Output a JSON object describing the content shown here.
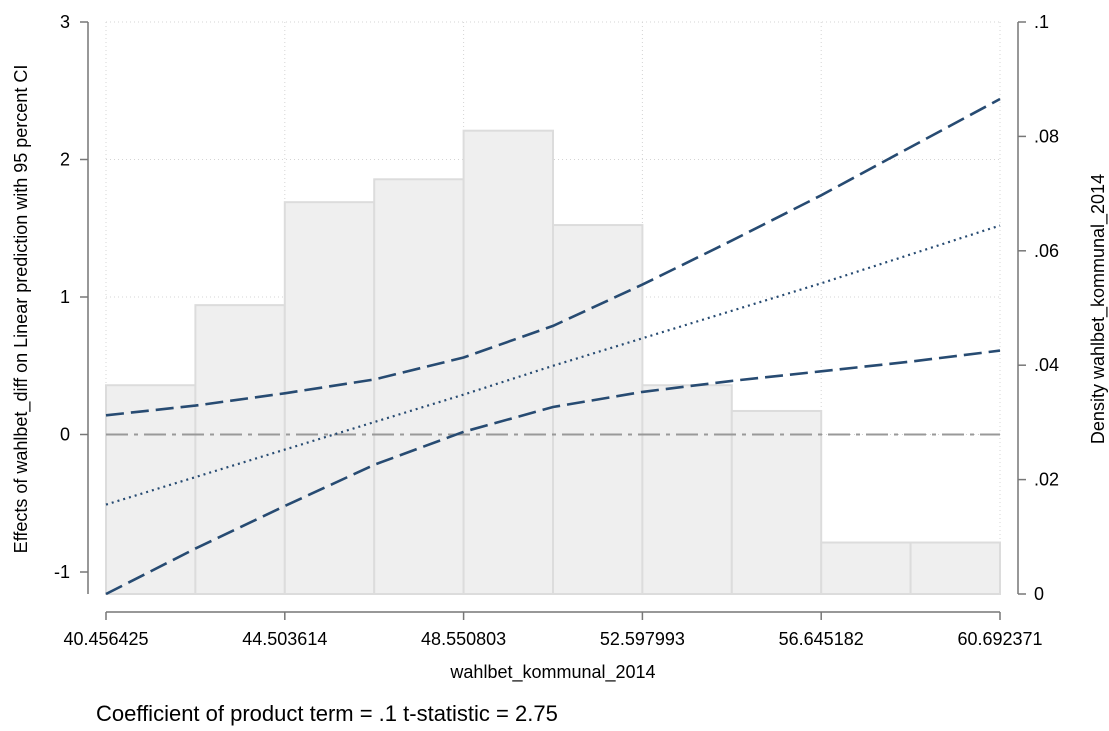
{
  "chart_data": {
    "type": "line",
    "xlabel": "wahlbet_kommunal_2014",
    "ylabel": "Effects of wahlbet_diff on Linear prediction with 95 percent CI",
    "y2label": "Density wahlbet_kommunal_2014",
    "note": "Coefficient of product term = .1 t-statistic = 2.75",
    "xlim": [
      40.456425,
      60.692371
    ],
    "ylim": [
      -1.16,
      3
    ],
    "y2lim": [
      0,
      0.1
    ],
    "grid": true,
    "x_ticks": [
      40.456425,
      44.503614,
      48.550803,
      52.597993,
      56.645182,
      60.692371
    ],
    "x_tick_labels": [
      "40.456425",
      "44.503614",
      "48.550803",
      "52.597993",
      "56.645182",
      "60.692371"
    ],
    "y_ticks": [
      -1,
      0,
      1,
      2,
      3
    ],
    "y_tick_labels": [
      "-1",
      "0",
      "1",
      "2",
      "3"
    ],
    "y2_ticks": [
      0,
      0.02,
      0.04,
      0.06,
      0.08,
      0.1
    ],
    "y2_tick_labels": [
      "0",
      ".02",
      ".04",
      ".06",
      ".08",
      ".1"
    ],
    "histogram": {
      "bin_edges": [
        40.456425,
        42.48002,
        44.503614,
        46.527209,
        48.550803,
        50.574398,
        52.597993,
        54.621587,
        56.645182,
        58.668776,
        60.692371
      ],
      "density": [
        0.0365,
        0.0505,
        0.0685,
        0.0725,
        0.081,
        0.0645,
        0.0365,
        0.032,
        0.009,
        0.009
      ]
    },
    "series": [
      {
        "role": "estimate",
        "x": [
          40.456425,
          42.48002,
          44.503614,
          46.527209,
          48.550803,
          50.574398,
          52.597993,
          54.621587,
          56.645182,
          58.668776,
          60.692371
        ],
        "values": [
          -0.51,
          -0.31,
          -0.11,
          0.09,
          0.29,
          0.5,
          0.7,
          0.9,
          1.1,
          1.31,
          1.52
        ]
      },
      {
        "role": "upper_ci",
        "x": [
          40.456425,
          42.48002,
          44.503614,
          46.527209,
          48.550803,
          50.574398,
          52.597993,
          54.621587,
          56.645182,
          58.668776,
          60.692371
        ],
        "values": [
          0.14,
          0.21,
          0.3,
          0.4,
          0.56,
          0.79,
          1.09,
          1.41,
          1.74,
          2.09,
          2.44
        ]
      },
      {
        "role": "lower_ci",
        "x": [
          40.456425,
          42.48002,
          44.503614,
          46.527209,
          48.550803,
          50.574398,
          52.597993,
          54.621587,
          56.645182,
          58.668776,
          60.692371
        ],
        "values": [
          -1.16,
          -0.83,
          -0.52,
          -0.22,
          0.02,
          0.2,
          0.31,
          0.39,
          0.46,
          0.53,
          0.61
        ]
      }
    ],
    "reference_line": 0,
    "colors": {
      "ci": "#274b72",
      "estimate": "#274b72",
      "histogram_fill": "#efefef",
      "histogram_edge": "#dcdcdc",
      "reference": "#999999",
      "grid": "#d4d4d4",
      "axis": "#777777"
    }
  }
}
